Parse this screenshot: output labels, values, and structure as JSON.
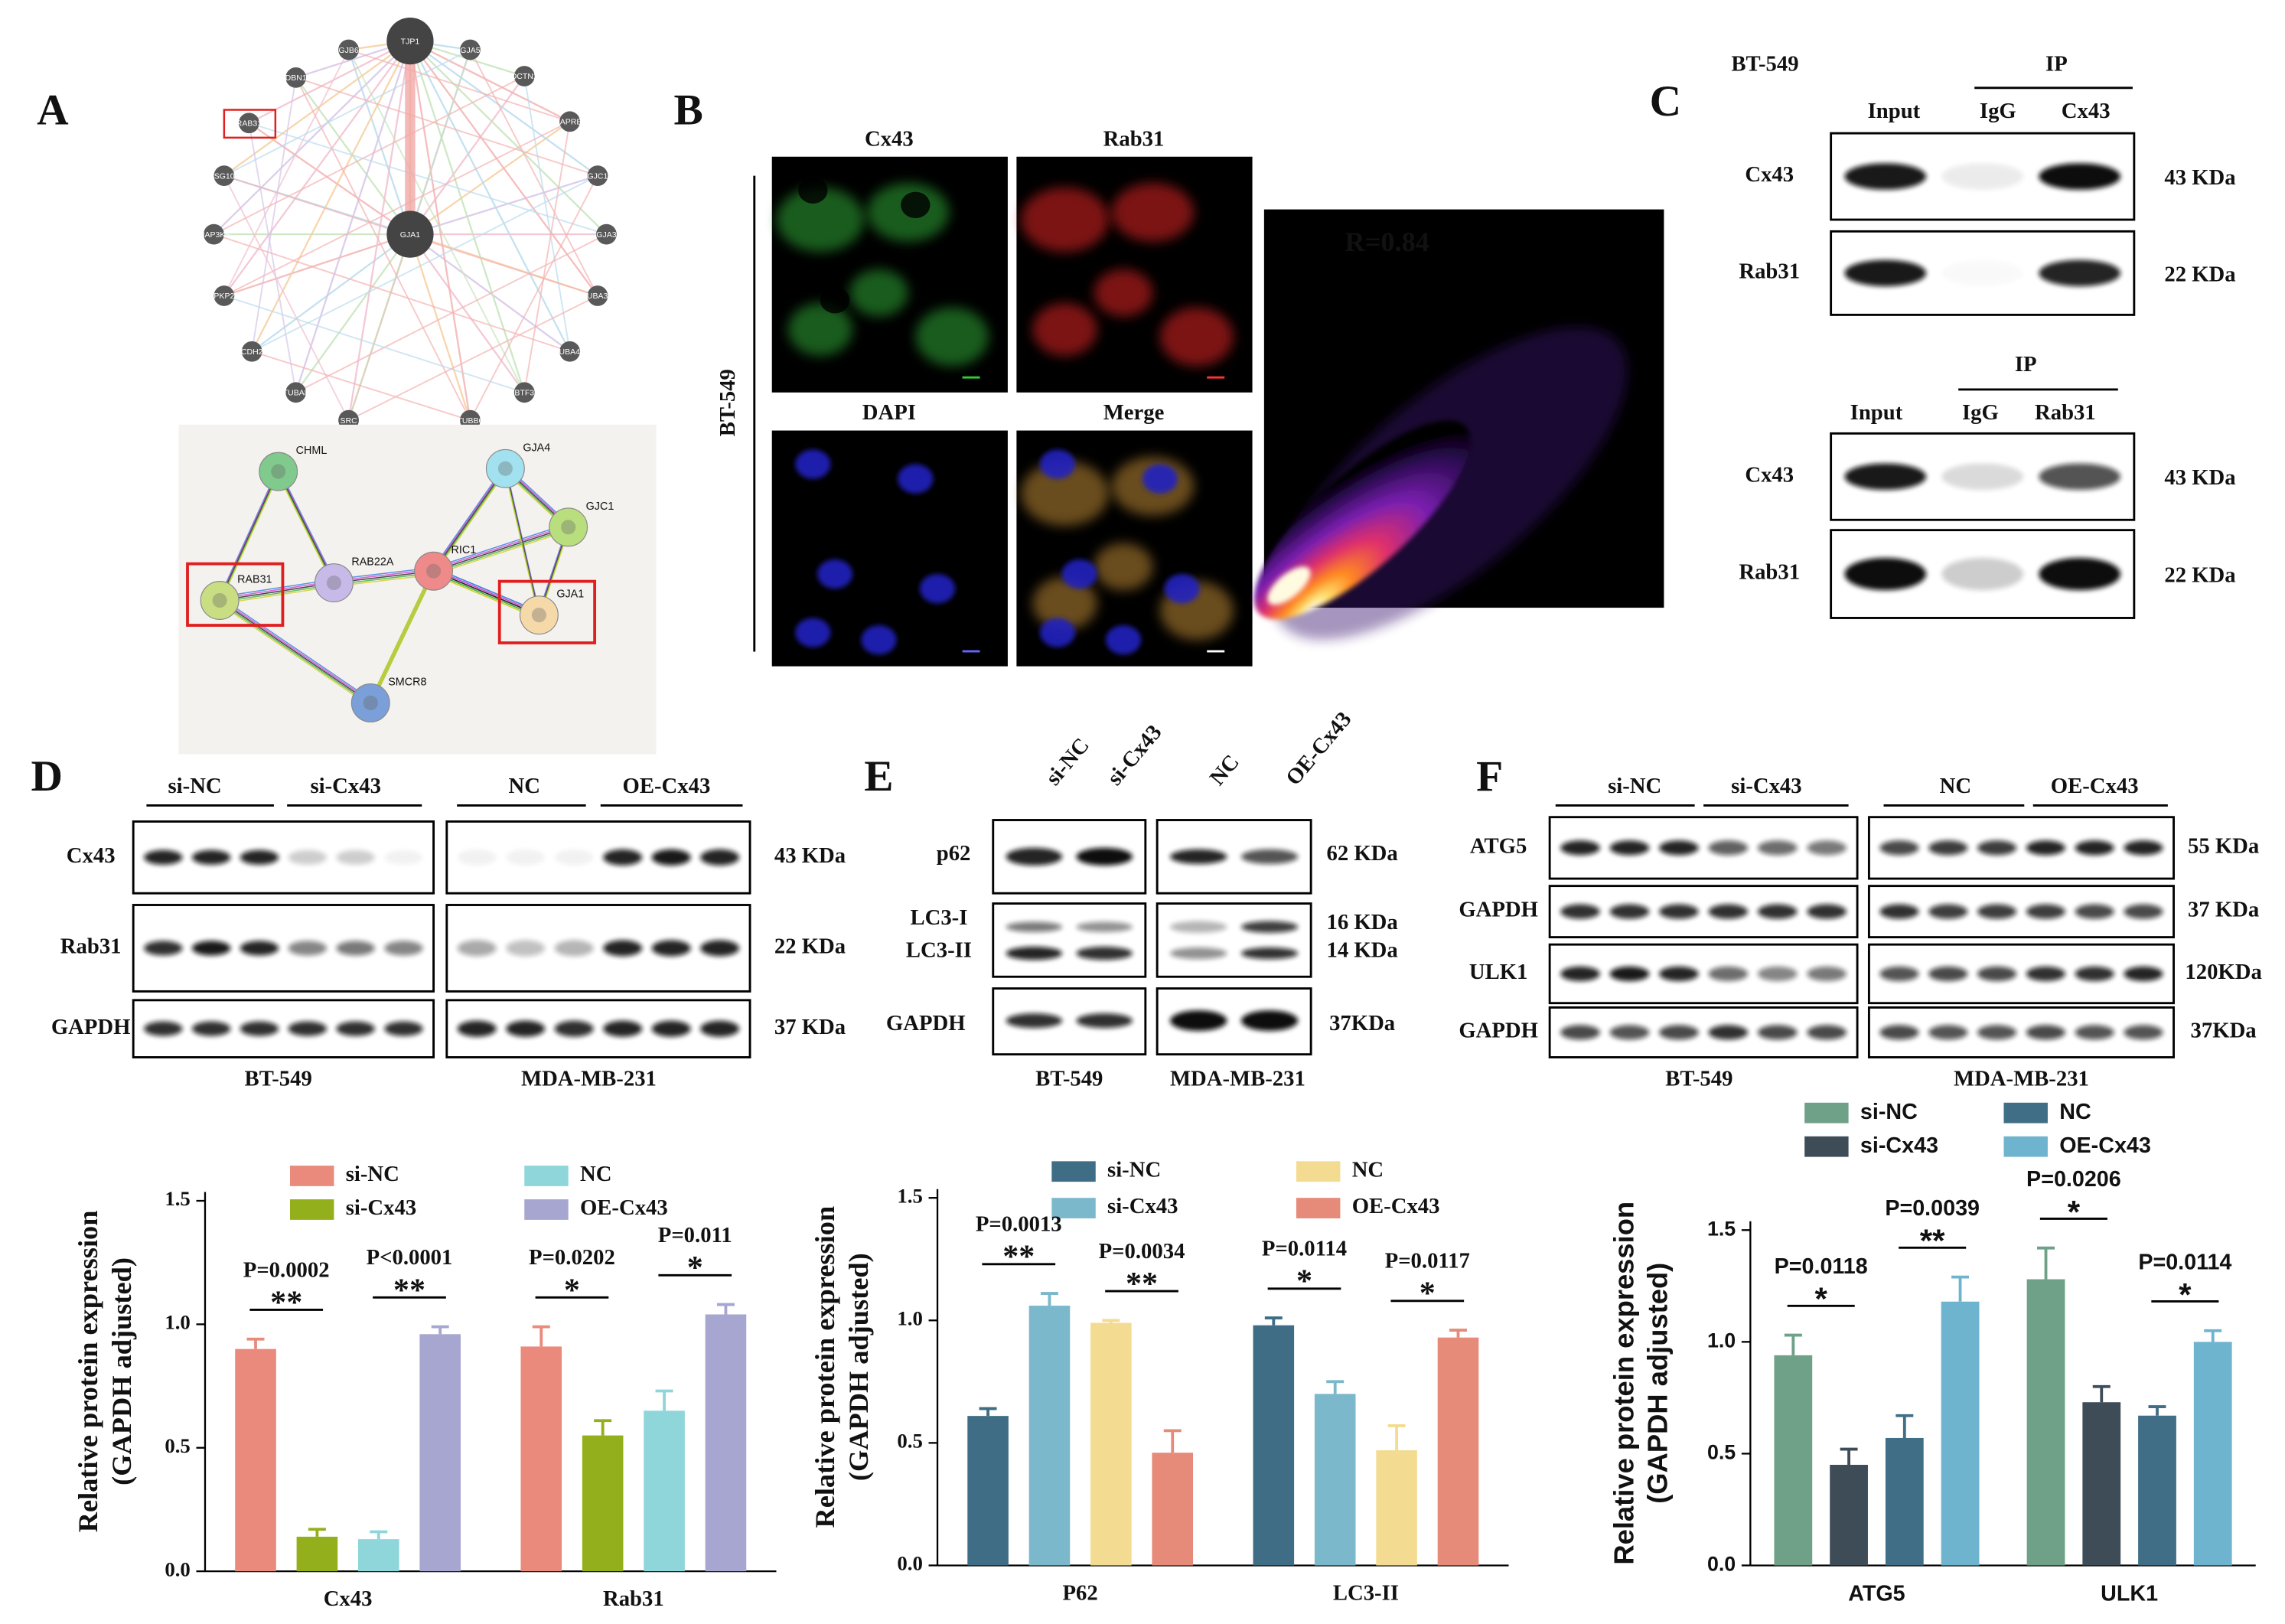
{
  "panel_labels": [
    "A",
    "B",
    "C",
    "D",
    "E",
    "F"
  ],
  "panel_a": {
    "network_nodes": [
      "TJP1",
      "GJB6",
      "GJA5",
      "DBN1",
      "DCTN1",
      "RAB31",
      "MAPRE1",
      "TSG101",
      "GJC1",
      "MAP3K5",
      "GJA3",
      "PKP2",
      "TUBA3E",
      "CDH2",
      "TUBA4A",
      "TUBA8",
      "BTF3",
      "SRC",
      "TUBB6",
      "GJA1"
    ],
    "string_nodes": [
      "CHML",
      "GJA4",
      "GJC1",
      "RAB22A",
      "RIC1",
      "RAB31",
      "GJA1",
      "SMCR8"
    ]
  },
  "panel_b": {
    "cell_line": "BT-549",
    "channels": [
      "Cx43",
      "Rab31",
      "DAPI",
      "Merge"
    ],
    "correlation": "R=0.84"
  },
  "panel_c": {
    "cell_line": "BT-549",
    "blots": [
      {
        "ip": "IP",
        "lanes": [
          "Input",
          "IgG",
          "Cx43"
        ],
        "rows": [
          "Cx43",
          "Rab31"
        ],
        "sizes": [
          "43 KDa",
          "22 KDa"
        ]
      },
      {
        "ip": "IP",
        "lanes": [
          "Input",
          "IgG",
          "Rab31"
        ],
        "rows": [
          "Cx43",
          "Rab31"
        ],
        "sizes": [
          "43 KDa",
          "22 KDa"
        ]
      }
    ]
  },
  "panel_d": {
    "groups": [
      "si-NC",
      "si-Cx43",
      "NC",
      "OE-Cx43"
    ],
    "rows": [
      "Cx43",
      "Rab31",
      "GAPDH"
    ],
    "sizes": [
      "43 KDa",
      "22 KDa",
      "37 KDa"
    ],
    "cell_lines": [
      "BT-549",
      "MDA-MB-231"
    ]
  },
  "panel_e": {
    "lanes": [
      "si-NC",
      "si-Cx43",
      "NC",
      "OE-Cx43"
    ],
    "rows": [
      "p62",
      "LC3-I",
      "LC3-II",
      "GAPDH"
    ],
    "sizes": [
      "62 KDa",
      "16 KDa",
      "14 KDa",
      "37KDa"
    ],
    "cell_lines": [
      "BT-549",
      "MDA-MB-231"
    ]
  },
  "panel_f": {
    "groups": [
      "si-NC",
      "si-Cx43",
      "NC",
      "OE-Cx43"
    ],
    "rows": [
      "ATG5",
      "GAPDH",
      "ULK1",
      "GAPDH"
    ],
    "sizes": [
      "55 KDa",
      "37 KDa",
      "120KDa",
      "37KDa"
    ],
    "cell_lines": [
      "BT-549",
      "MDA-MB-231"
    ]
  },
  "chart_data": [
    {
      "type": "bar",
      "ylabel": [
        "Relative protein expression",
        "(GAPDH adjusted)"
      ],
      "categories": [
        "Cx43",
        "Rab31"
      ],
      "series": [
        {
          "name": "si-NC",
          "color": "#e98a7d",
          "values": [
            0.9,
            0.91
          ],
          "errors": [
            0.04,
            0.08
          ]
        },
        {
          "name": "si-Cx43",
          "color": "#93b01c",
          "values": [
            0.14,
            0.55
          ],
          "errors": [
            0.03,
            0.06
          ]
        },
        {
          "name": "NC",
          "color": "#8ed6d9",
          "values": [
            0.13,
            0.65
          ],
          "errors": [
            0.03,
            0.08
          ]
        },
        {
          "name": "OE-Cx43",
          "color": "#a6a6d0",
          "values": [
            0.96,
            1.04
          ],
          "errors": [
            0.03,
            0.04
          ]
        }
      ],
      "ylim": [
        0,
        1.5
      ],
      "yticks": [
        {
          "value": 0,
          "label": "0.0"
        },
        0.5,
        {
          "value": 1,
          "label": "1.0"
        },
        1.5
      ],
      "annotations": [
        {
          "label": "P=0.0002",
          "marker": "**",
          "category": 0,
          "pair": [
            0,
            1
          ]
        },
        {
          "label": "P<0.0001",
          "marker": "**",
          "category": 0,
          "pair": [
            2,
            3
          ]
        },
        {
          "label": "P=0.0202",
          "marker": "*",
          "category": 1,
          "pair": [
            0,
            1
          ]
        },
        {
          "label": "P=0.011",
          "marker": "*",
          "category": 1,
          "pair": [
            2,
            3
          ]
        }
      ]
    },
    {
      "type": "bar",
      "ylabel": [
        "Relative protein expression",
        "(GAPDH adjusted)"
      ],
      "categories": [
        "P62",
        "LC3-II"
      ],
      "series": [
        {
          "name": "si-NC",
          "color": "#3f6d85",
          "values": [
            0.61,
            0.98
          ],
          "errors": [
            0.03,
            0.03
          ]
        },
        {
          "name": "si-Cx43",
          "color": "#7bb8cc",
          "values": [
            1.06,
            0.7
          ],
          "errors": [
            0.05,
            0.05
          ]
        },
        {
          "name": "NC",
          "color": "#f3dc92",
          "values": [
            0.99,
            0.47
          ],
          "errors": [
            0.01,
            0.1
          ]
        },
        {
          "name": "OE-Cx43",
          "color": "#e68a79",
          "values": [
            0.46,
            0.93
          ],
          "errors": [
            0.09,
            0.03
          ]
        }
      ],
      "ylim": [
        0,
        1.5
      ],
      "yticks": [
        {
          "value": 0,
          "label": "0.0"
        },
        0.5,
        {
          "value": 1,
          "label": "1.0"
        },
        1.5
      ],
      "annotations": [
        {
          "label": "P=0.0013",
          "marker": "**",
          "category": 0,
          "pair": [
            0,
            1
          ]
        },
        {
          "label": "P=0.0034",
          "marker": "**",
          "category": 0,
          "pair": [
            2,
            3
          ]
        },
        {
          "label": "P=0.0114",
          "marker": "*",
          "category": 1,
          "pair": [
            0,
            1
          ]
        },
        {
          "label": "P=0.0117",
          "marker": "*",
          "category": 1,
          "pair": [
            2,
            3
          ]
        }
      ]
    },
    {
      "type": "bar",
      "ylabel": [
        "Relative protein expression",
        "(GAPDH adjusted)"
      ],
      "categories": [
        "ATG5",
        "ULK1"
      ],
      "series": [
        {
          "name": "si-NC",
          "color": "#6fa088",
          "values": [
            0.94,
            1.28
          ],
          "errors": [
            0.09,
            0.14
          ]
        },
        {
          "name": "si-Cx43",
          "color": "#3e4c58",
          "values": [
            0.45,
            0.73
          ],
          "errors": [
            0.07,
            0.07
          ]
        },
        {
          "name": "NC",
          "color": "#3f6e86",
          "values": [
            0.57,
            0.67
          ],
          "errors": [
            0.1,
            0.04
          ]
        },
        {
          "name": "OE-Cx43",
          "color": "#6fb4cf",
          "values": [
            1.18,
            1.0
          ],
          "errors": [
            0.11,
            0.05
          ]
        }
      ],
      "ylim": [
        0,
        1.5
      ],
      "yticks": [
        {
          "value": 0,
          "label": "0.0"
        },
        0.5,
        {
          "value": 1,
          "label": "1.0"
        },
        1.5
      ],
      "annotations": [
        {
          "label": "P=0.0118",
          "marker": "*",
          "category": 0,
          "pair": [
            0,
            1
          ]
        },
        {
          "label": "P=0.0039",
          "marker": "**",
          "category": 0,
          "pair": [
            2,
            3
          ]
        },
        {
          "label": "P=0.0206",
          "marker": "*",
          "category": 1,
          "pair": [
            0,
            1
          ]
        },
        {
          "label": "P=0.0114",
          "marker": "*",
          "category": 1,
          "pair": [
            2,
            3
          ]
        }
      ]
    }
  ]
}
